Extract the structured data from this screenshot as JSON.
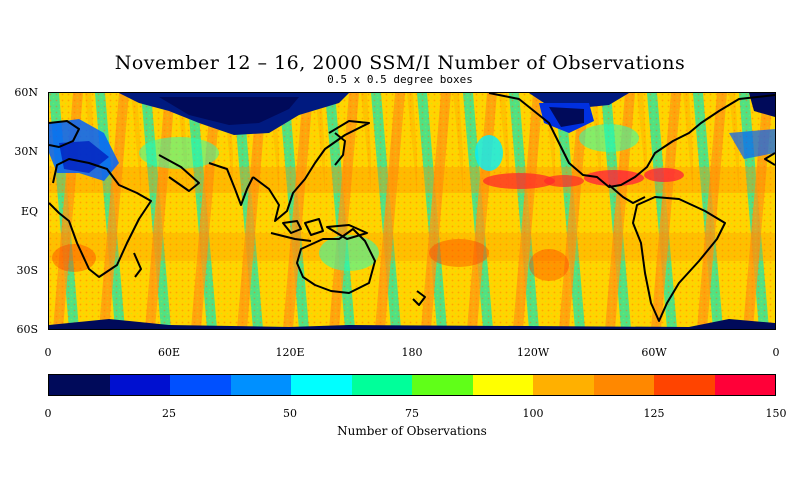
{
  "title": "November 12 – 16, 2000 SSM/I Number of Observations",
  "subtitle": "0.5 x 0.5 degree boxes",
  "map": {
    "y_labels": [
      "60N",
      "30N",
      "EQ",
      "30S",
      "60S"
    ],
    "x_labels": [
      "0",
      "60E",
      "120E",
      "180",
      "120W",
      "60W",
      "0"
    ]
  },
  "colorbar": {
    "title": "Number of Observations",
    "labels": [
      "0",
      "25",
      "50",
      "75",
      "100",
      "125",
      "150"
    ],
    "colors": [
      "#000a5a",
      "#0010d0",
      "#0050ff",
      "#0090ff",
      "#00ffff",
      "#00ff9a",
      "#60ff18",
      "#ffff00",
      "#ffb000",
      "#ff8800",
      "#ff4400",
      "#ff0038"
    ]
  }
}
